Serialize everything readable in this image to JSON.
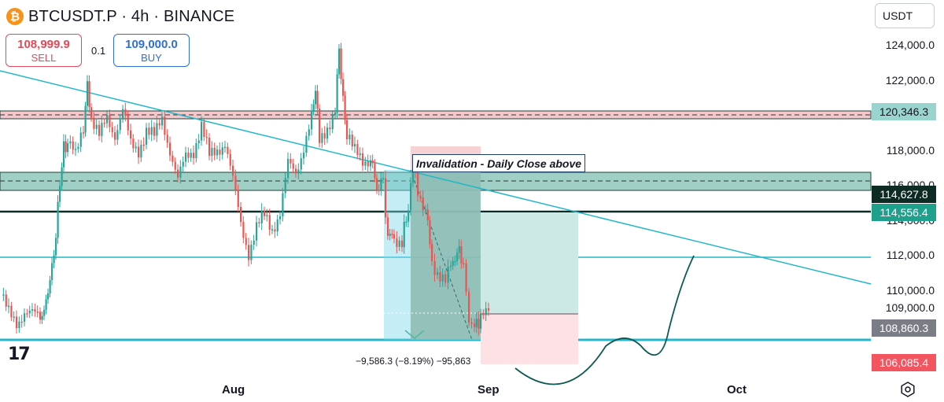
{
  "header": {
    "symbol_title": "BTCUSDT.P · 4h · BINANCE",
    "coin_icon": "bitcoin-icon"
  },
  "trade": {
    "sell_price": "108,999.9",
    "sell_label": "SELL",
    "buy_price": "109,000.0",
    "buy_label": "BUY",
    "quantity": "0.1"
  },
  "currency": "USDT",
  "price_axis": {
    "ticks": [
      {
        "label": "124,000.0",
        "value": 124000
      },
      {
        "label": "122,000.0",
        "value": 122000
      },
      {
        "label": "118,000.0",
        "value": 118000
      },
      {
        "label": "116,000.0",
        "value": 116000
      },
      {
        "label": "114,000.0",
        "value": 114000
      },
      {
        "label": "112,000.0",
        "value": 112000
      },
      {
        "label": "110,000.0",
        "value": 110000
      },
      {
        "label": "109,000.0",
        "value": 109000
      }
    ]
  },
  "price_tags": [
    {
      "label": "120,346.3",
      "value": 120346.3,
      "bg": "#99d4cf",
      "fg": "#131722"
    },
    {
      "label": "114,627.8",
      "value": 114627.8,
      "bg": "#0d2b24",
      "fg": "#ffffff"
    },
    {
      "label": "114,556.4",
      "value": 114556.4,
      "bg": "#1fa08d",
      "fg": "#ffffff"
    },
    {
      "label": "108,860.3",
      "value": 108860.3,
      "bg": "#7a7d85",
      "fg": "#ffffff"
    },
    {
      "label": "106,085.4",
      "value": 106085.4,
      "bg": "#f2555f",
      "fg": "#ffffff"
    }
  ],
  "time_axis": {
    "labels": [
      "Aug",
      "Sep",
      "Oct"
    ]
  },
  "annotation": "Invalidation - Daily Close above",
  "measure_label": "−9,586.3 (−8.19%) −95,863",
  "colors": {
    "bull": "#26a69a",
    "bear": "#ef5350",
    "trendline": "#22b7c9",
    "zone_green": "#7fbfb2",
    "zone_red": "#f4c7cb",
    "target": "#cde9e5",
    "stop": "#fde1e4",
    "projection": "#0e5a52"
  },
  "icons": {
    "logo": "tradingview-logo",
    "settings": "settings-icon"
  }
}
